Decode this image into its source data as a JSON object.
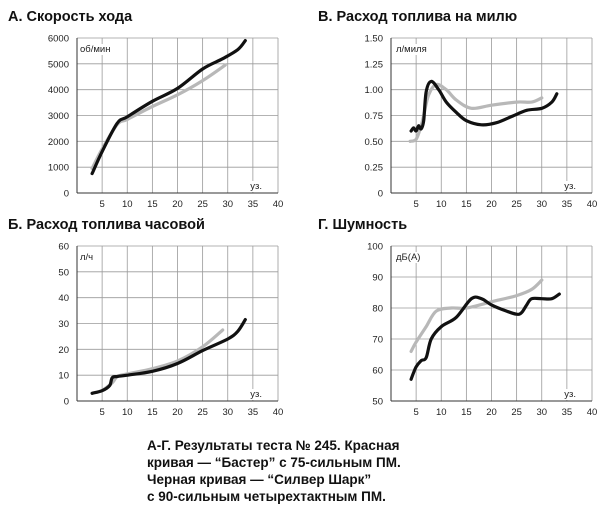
{
  "chart_data": [
    {
      "type": "line",
      "title": "А. Скорость хода",
      "ylabel": "об/мин",
      "xlabel": "уз.",
      "ylim": [
        0,
        6000
      ],
      "xlim": [
        0,
        40
      ],
      "yticks": [
        "0",
        "1000",
        "2000",
        "3000",
        "4000",
        "5000",
        "6000"
      ],
      "xticks": [
        "5",
        "10",
        "15",
        "20",
        "25",
        "30",
        "35",
        "40"
      ],
      "grid": true,
      "series": [
        {
          "color": "#b8b8b8",
          "x": [
            3,
            5,
            8,
            10,
            15,
            20,
            25,
            29.5
          ],
          "y": [
            950,
            1700,
            2650,
            2850,
            3350,
            3800,
            4350,
            4950
          ]
        },
        {
          "color": "#111111",
          "x": [
            3,
            5,
            8,
            10,
            15,
            20,
            25,
            29,
            32,
            33.5
          ],
          "y": [
            750,
            1600,
            2700,
            2950,
            3550,
            4050,
            4800,
            5200,
            5550,
            5900
          ]
        }
      ]
    },
    {
      "type": "line",
      "title": "В. Расход топлива на милю",
      "ylabel": "л/миля",
      "xlabel": "уз.",
      "ylim": [
        0,
        1.5
      ],
      "xlim": [
        0,
        40
      ],
      "yticks": [
        "0",
        "0.25",
        "0.50",
        "0.75",
        "1.00",
        "1.25",
        "1.50"
      ],
      "xticks": [
        "5",
        "10",
        "15",
        "20",
        "25",
        "30",
        "35",
        "40"
      ],
      "grid": true,
      "series": [
        {
          "color": "#b8b8b8",
          "x": [
            3.8,
            5,
            6,
            6.5,
            7.5,
            9,
            11,
            13,
            16,
            20,
            25,
            28,
            30
          ],
          "y": [
            0.5,
            0.52,
            0.65,
            0.75,
            0.95,
            1.05,
            1.0,
            0.9,
            0.82,
            0.85,
            0.88,
            0.88,
            0.92
          ]
        },
        {
          "color": "#111111",
          "x": [
            4,
            4.5,
            5,
            5.5,
            6,
            6.5,
            7,
            8,
            9.5,
            11,
            13,
            15,
            18,
            21,
            24,
            27,
            30,
            32,
            33
          ],
          "y": [
            0.6,
            0.63,
            0.6,
            0.65,
            0.62,
            0.7,
            0.98,
            1.08,
            1.0,
            0.88,
            0.78,
            0.7,
            0.66,
            0.68,
            0.74,
            0.8,
            0.82,
            0.88,
            0.96
          ]
        }
      ]
    },
    {
      "type": "line",
      "title": "Б. Расход топлива часовой",
      "ylabel": "л/ч",
      "xlabel": "уз.",
      "ylim": [
        0,
        60
      ],
      "xlim": [
        0,
        40
      ],
      "yticks": [
        "0",
        "10",
        "20",
        "30",
        "40",
        "50",
        "60"
      ],
      "xticks": [
        "5",
        "10",
        "15",
        "20",
        "25",
        "30",
        "35",
        "40"
      ],
      "grid": true,
      "series": [
        {
          "color": "#b8b8b8",
          "x": [
            5,
            7,
            8,
            10,
            15,
            20,
            25,
            29
          ],
          "y": [
            4,
            7,
            9.5,
            10.5,
            12.5,
            15.5,
            21,
            27.5
          ]
        },
        {
          "color": "#111111",
          "x": [
            3,
            5,
            6.5,
            7,
            8,
            10,
            15,
            20,
            25,
            30,
            32,
            33.5
          ],
          "y": [
            3,
            4,
            6,
            9,
            9.5,
            10,
            11.5,
            14.5,
            19.5,
            24,
            27,
            31.5
          ]
        }
      ]
    },
    {
      "type": "line",
      "title": "Г. Шумность",
      "ylabel": "дБ(А)",
      "xlabel": "уз.",
      "ylim": [
        50,
        100
      ],
      "xlim": [
        0,
        40
      ],
      "yticks": [
        "50",
        "60",
        "70",
        "80",
        "90",
        "100"
      ],
      "xticks": [
        "5",
        "10",
        "15",
        "20",
        "25",
        "30",
        "35",
        "40"
      ],
      "grid": true,
      "series": [
        {
          "color": "#b8b8b8",
          "x": [
            4,
            5,
            7,
            9,
            12,
            15,
            20,
            25,
            28,
            30
          ],
          "y": [
            66,
            69,
            74,
            79,
            80,
            80,
            82,
            84,
            86,
            89
          ]
        },
        {
          "color": "#111111",
          "x": [
            4,
            5,
            6,
            7,
            8,
            10,
            13,
            16,
            18,
            20,
            23,
            25,
            26,
            27,
            28,
            30,
            32,
            33.5
          ],
          "y": [
            57,
            61,
            63,
            64,
            70,
            74,
            77,
            83,
            83,
            81,
            79,
            78,
            78.5,
            81,
            83,
            83,
            83,
            84.5
          ]
        }
      ]
    }
  ],
  "caption": {
    "lines": [
      "А-Г. Результаты теста № 245. Красная",
      "кривая — “Бастер” с 75-сильным ПМ.",
      "Черная кривая — “Силвер Шарк”",
      "с 90-сильным четырехтактным ПМ."
    ]
  }
}
